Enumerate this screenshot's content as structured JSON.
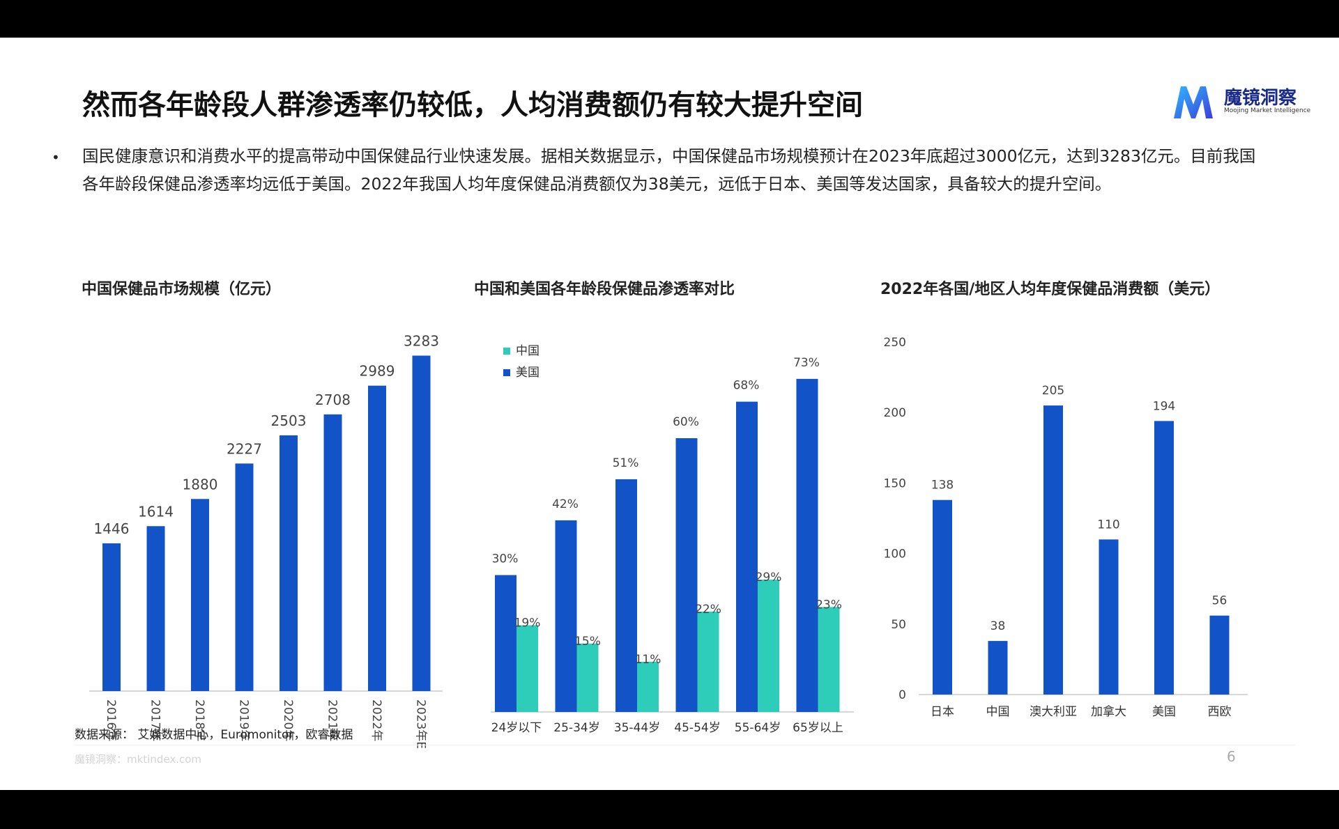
{
  "title": "然而各年龄段人群渗透率仍较低，人均消费额仍有较大提升空间",
  "logo": {
    "name": "魔镜洞察",
    "subtitle": "Moojing Market Intelligence"
  },
  "bullet": "国民健康意识和消费水平的提高带动中国保健品行业快速发展。据相关数据显示，中国保健品市场规模预计在2023年底超过3000亿元，达到3283亿元。目前我国各年龄段保健品渗透率均远低于美国。2022年我国人均年度保健品消费额仅为38美元，远低于日本、美国等发达国家，具备较大的提升空间。",
  "source": "数据来源：  艾媒数据中心，Euromonitor，欧睿数据",
  "footer": {
    "left": "魔镜洞察：mktindex.com",
    "page": "6"
  },
  "colors": {
    "blue": "#1353c8",
    "teal": "#2ecdb9",
    "axis": "#cccccc"
  },
  "chart_data": [
    {
      "type": "bar",
      "title": "中国保健品市场规模（亿元）",
      "categories": [
        "2016年",
        "2017年",
        "2018年",
        "2019年",
        "2020年",
        "2021年",
        "2022年",
        "2023年E"
      ],
      "values": [
        1446,
        1614,
        1880,
        2227,
        2503,
        2708,
        2989,
        3283
      ],
      "ylim": [
        0,
        3600
      ],
      "grid": false
    },
    {
      "type": "bar",
      "title": "中国和美国各年龄段保健品渗透率对比",
      "categories": [
        "24岁以下",
        "25-34岁",
        "35-44岁",
        "45-54岁",
        "55-64岁",
        "65岁以上"
      ],
      "series": [
        {
          "name": "中国",
          "values": [
            19,
            15,
            11,
            22,
            29,
            23
          ],
          "labels": [
            "19%",
            "15%",
            "11%",
            "22%",
            "29%",
            "23%"
          ]
        },
        {
          "name": "美国",
          "values": [
            30,
            42,
            51,
            60,
            68,
            73
          ],
          "labels": [
            "30%",
            "42%",
            "51%",
            "60%",
            "68%",
            "73%"
          ]
        }
      ],
      "ylim": [
        0,
        80
      ],
      "legend": "top-left",
      "grid": false
    },
    {
      "type": "bar",
      "title": "2022年各国/地区人均年度保健品消费额（美元）",
      "categories": [
        "日本",
        "中国",
        "澳大利亚",
        "加拿大",
        "美国",
        "西欧"
      ],
      "values": [
        138,
        38,
        205,
        110,
        194,
        56
      ],
      "ylim": [
        0,
        250
      ],
      "yticks": [
        "0",
        "50",
        "100",
        "150",
        "200",
        "250"
      ],
      "grid": false
    }
  ]
}
